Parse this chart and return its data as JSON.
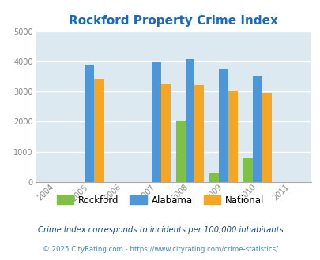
{
  "title": "Rockford Property Crime Index",
  "years": [
    2004,
    2005,
    2006,
    2007,
    2008,
    2009,
    2010,
    2011
  ],
  "bar_data": {
    "2005": {
      "rockford": null,
      "alabama": 3900,
      "national": 3430
    },
    "2007": {
      "rockford": null,
      "alabama": 3960,
      "national": 3240
    },
    "2008": {
      "rockford": 2040,
      "alabama": 4080,
      "national": 3210
    },
    "2009": {
      "rockford": 300,
      "alabama": 3760,
      "national": 3040
    },
    "2010": {
      "rockford": 800,
      "alabama": 3500,
      "national": 2950
    }
  },
  "colors": {
    "rockford": "#7dc242",
    "alabama": "#4d97d8",
    "national": "#f5a623"
  },
  "ylim": [
    0,
    5000
  ],
  "yticks": [
    0,
    1000,
    2000,
    3000,
    4000,
    5000
  ],
  "bg_color": "#dce9f0",
  "title_color": "#1a69c0",
  "title_fontsize": 11,
  "legend_labels": [
    "Rockford",
    "Alabama",
    "National"
  ],
  "footnote1": "Crime Index corresponds to incidents per 100,000 inhabitants",
  "footnote2": "© 2025 CityRating.com - https://www.cityrating.com/crime-statistics/",
  "bar_width": 0.28,
  "grid_color": "#ffffff",
  "tick_color": "#888888"
}
